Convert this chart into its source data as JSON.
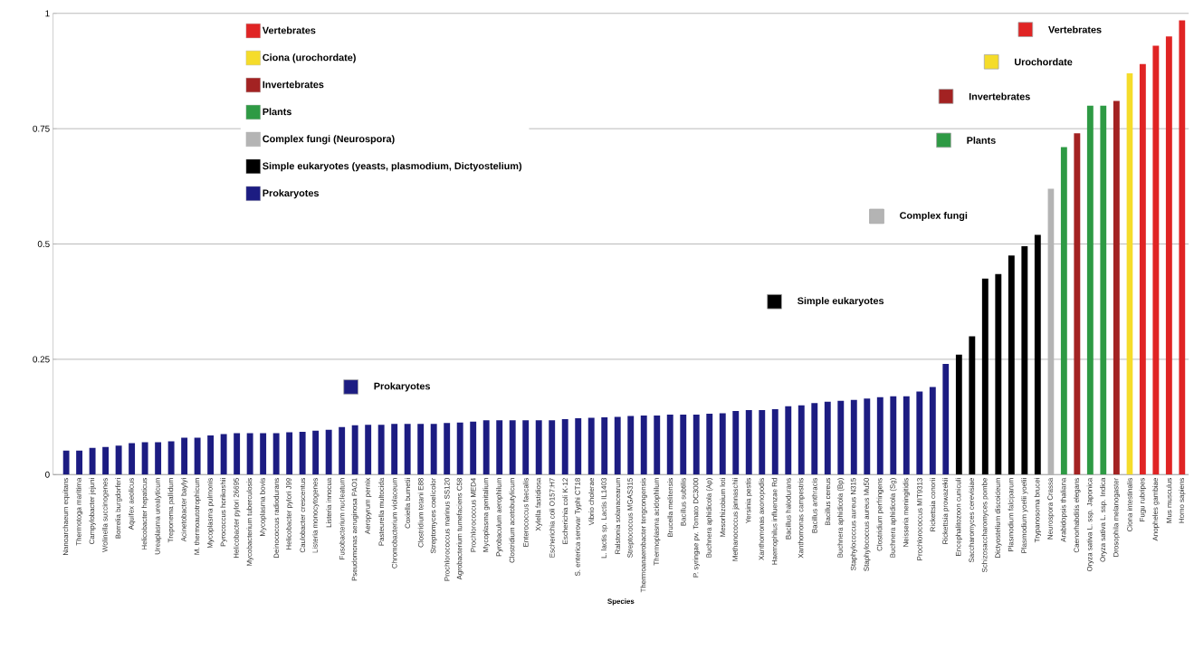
{
  "chart_data": {
    "type": "bar",
    "xlabel": "Species",
    "categories": [
      "Nanoarchaeum equitans",
      "Thermotoga maritima",
      "Campylobacter jejuni",
      "Wolinella succinogenes",
      "Borrelia burgdorferi",
      "Aquifex aeolicus",
      "Helicobacter hepaticus",
      "Ureaplasma urealyticum",
      "Treponema pallidum",
      "Acinetobacter baylyi",
      "M. thermoautotrophicum",
      "Mycoplasma pulmonis",
      "Pyrococcus horikoshii",
      "Helicobacter pylori 26695",
      "Mycobacterium tuberculosis",
      "Mycoplasma bovis",
      "Deinococcus radiodurans",
      "Helicobacter pylori J99",
      "Caulobacter crescentus",
      "Listeria monocytogenes",
      "Listeria innocua",
      "Fusobacterium nucleatum",
      "Pseudomonas aeruginosa PAO1",
      "Aeropyrum pernix",
      "Pasteurella multocida",
      "Chromobacterium violaceum",
      "Coxiella burnetii",
      "Clostridium tetani E88",
      "Streptomyces coelicolor",
      "Prochlorococcus marinus SS120",
      "Agrobacterium tumefaciens C58",
      "Prochlorococcus MED4",
      "Mycoplasma genitalium",
      "Pyrobaculum aerophilum",
      "Clostridium acetobutylicum",
      "Enterococcus faecalis",
      "Xylella fastidiosa",
      "Escherichia coli O157:H7",
      "Escherichia coli K-12",
      "S. enterica serovar Typhi CT18",
      "Vibrio cholerae",
      "L. lactis sp. Lactis IL1403",
      "Ralstonia solanacearum",
      "Streptococcus MGAS315",
      "Thermoanaerobacter tengcongensis",
      "Thermoplasma acidophilum",
      "Brucella melitensis",
      "Bacillus subtilis",
      "P. syringae pv. Tomato DC3000",
      "Buchnera aphidicola (Ap)",
      "Mesorhizobium loti",
      "Methanococcus jannaschii",
      "Yersinia pestis",
      "Xanthomonas axonopodis",
      "Haemophilus influenzae Rd",
      "Bacillus halodurans",
      "Xanthomonas campestris",
      "Bacillus anthracis",
      "Bacillus cereus",
      "Buchnera aphidicola (Bp)",
      "Staphylococcus aureus N315",
      "Staphylococcus aureus Mu50",
      "Clostridium perfringens",
      "Buchnera aphidicola (Sg)",
      "Neisseria meningitidis",
      "Prochlorococcus MIT9313",
      "Rickettsia conorii",
      "Rickettsia prowazekii",
      "Encephalitozoon cuniculi",
      "Saccharomyces cerevisiae",
      "Schizosaccharomyces pombe",
      "Dictyostelium discoideum",
      "Plasmodium falciparum",
      "Plasmodium yoelii yoelii",
      "Trypanosoma brucei",
      "Neurospora Crassa",
      "Arabidopsis thaliana",
      "Caenorhabditis elegans",
      "Oryza sativa L. ssp. Japonica",
      "Oryza sativa L. ssp. Indica",
      "Drosophila melanogaster",
      "Ciona intestinalis",
      "Fugu rubripes",
      "Anopheles gambiae",
      "Mus musculus",
      "Homo sapiens"
    ],
    "series": [
      {
        "name": "Vertebrates",
        "color": "#e02424",
        "values": [
          null,
          null,
          null,
          null,
          null,
          null,
          null,
          null,
          null,
          null,
          null,
          null,
          null,
          null,
          null,
          null,
          null,
          null,
          null,
          null,
          null,
          null,
          null,
          null,
          null,
          null,
          null,
          null,
          null,
          null,
          null,
          null,
          null,
          null,
          null,
          null,
          null,
          null,
          null,
          null,
          null,
          null,
          null,
          null,
          null,
          null,
          null,
          null,
          null,
          null,
          null,
          null,
          null,
          null,
          null,
          null,
          null,
          null,
          null,
          null,
          null,
          null,
          null,
          null,
          null,
          null,
          null,
          null,
          null,
          null,
          null,
          null,
          null,
          null,
          null,
          null,
          null,
          null,
          null,
          null,
          null,
          null,
          0.89,
          0.93,
          0.95,
          0.985
        ]
      },
      {
        "name": "Ciona (urochordate)",
        "color": "#f5dc2a",
        "values": [
          null,
          null,
          null,
          null,
          null,
          null,
          null,
          null,
          null,
          null,
          null,
          null,
          null,
          null,
          null,
          null,
          null,
          null,
          null,
          null,
          null,
          null,
          null,
          null,
          null,
          null,
          null,
          null,
          null,
          null,
          null,
          null,
          null,
          null,
          null,
          null,
          null,
          null,
          null,
          null,
          null,
          null,
          null,
          null,
          null,
          null,
          null,
          null,
          null,
          null,
          null,
          null,
          null,
          null,
          null,
          null,
          null,
          null,
          null,
          null,
          null,
          null,
          null,
          null,
          null,
          null,
          null,
          null,
          null,
          null,
          null,
          null,
          null,
          null,
          null,
          null,
          null,
          null,
          null,
          null,
          null,
          0.87,
          null,
          null,
          null,
          null
        ]
      },
      {
        "name": "Invertebrates",
        "color": "#a32222",
        "values": [
          null,
          null,
          null,
          null,
          null,
          null,
          null,
          null,
          null,
          null,
          null,
          null,
          null,
          null,
          null,
          null,
          null,
          null,
          null,
          null,
          null,
          null,
          null,
          null,
          null,
          null,
          null,
          null,
          null,
          null,
          null,
          null,
          null,
          null,
          null,
          null,
          null,
          null,
          null,
          null,
          null,
          null,
          null,
          null,
          null,
          null,
          null,
          null,
          null,
          null,
          null,
          null,
          null,
          null,
          null,
          null,
          null,
          null,
          null,
          null,
          null,
          null,
          null,
          null,
          null,
          null,
          null,
          null,
          null,
          null,
          null,
          null,
          null,
          null,
          null,
          null,
          null,
          0.74,
          null,
          null,
          0.81,
          null,
          null,
          null,
          null,
          null
        ]
      },
      {
        "name": "Plants",
        "color": "#2e9a44",
        "values": [
          null,
          null,
          null,
          null,
          null,
          null,
          null,
          null,
          null,
          null,
          null,
          null,
          null,
          null,
          null,
          null,
          null,
          null,
          null,
          null,
          null,
          null,
          null,
          null,
          null,
          null,
          null,
          null,
          null,
          null,
          null,
          null,
          null,
          null,
          null,
          null,
          null,
          null,
          null,
          null,
          null,
          null,
          null,
          null,
          null,
          null,
          null,
          null,
          null,
          null,
          null,
          null,
          null,
          null,
          null,
          null,
          null,
          null,
          null,
          null,
          null,
          null,
          null,
          null,
          null,
          null,
          null,
          null,
          null,
          null,
          null,
          null,
          null,
          null,
          null,
          null,
          0.71,
          null,
          0.8,
          0.8,
          null,
          null,
          null,
          null,
          null,
          null
        ]
      },
      {
        "name": "Complex fungi (Neurospora)",
        "color": "#b4b4b4",
        "values": [
          null,
          null,
          null,
          null,
          null,
          null,
          null,
          null,
          null,
          null,
          null,
          null,
          null,
          null,
          null,
          null,
          null,
          null,
          null,
          null,
          null,
          null,
          null,
          null,
          null,
          null,
          null,
          null,
          null,
          null,
          null,
          null,
          null,
          null,
          null,
          null,
          null,
          null,
          null,
          null,
          null,
          null,
          null,
          null,
          null,
          null,
          null,
          null,
          null,
          null,
          null,
          null,
          null,
          null,
          null,
          null,
          null,
          null,
          null,
          null,
          null,
          null,
          null,
          null,
          null,
          null,
          null,
          null,
          null,
          null,
          null,
          null,
          null,
          null,
          null,
          0.62,
          null,
          null,
          null,
          null,
          null,
          null,
          null,
          null,
          null,
          null
        ]
      },
      {
        "name": "Simple eukaryotes (yeasts, plasmodium, Dictyostelium)",
        "color": "#000000",
        "values": [
          null,
          null,
          null,
          null,
          null,
          null,
          null,
          null,
          null,
          null,
          null,
          null,
          null,
          null,
          null,
          null,
          null,
          null,
          null,
          null,
          null,
          null,
          null,
          null,
          null,
          null,
          null,
          null,
          null,
          null,
          null,
          null,
          null,
          null,
          null,
          null,
          null,
          null,
          null,
          null,
          null,
          null,
          null,
          null,
          null,
          null,
          null,
          null,
          null,
          null,
          null,
          null,
          null,
          null,
          null,
          null,
          null,
          null,
          null,
          null,
          null,
          null,
          null,
          null,
          null,
          null,
          null,
          null,
          0.26,
          0.3,
          0.425,
          0.435,
          0.475,
          0.495,
          0.52,
          null,
          null,
          null,
          null,
          null,
          null,
          null,
          null,
          null,
          null,
          null
        ]
      },
      {
        "name": "Prokaryotes",
        "color": "#1c1c82",
        "values": [
          0.052,
          0.052,
          0.058,
          0.06,
          0.063,
          0.068,
          0.07,
          0.07,
          0.072,
          0.08,
          0.08,
          0.085,
          0.088,
          0.09,
          0.09,
          0.09,
          0.09,
          0.092,
          0.093,
          0.095,
          0.097,
          0.103,
          0.107,
          0.108,
          0.108,
          0.11,
          0.11,
          0.11,
          0.11,
          0.112,
          0.113,
          0.115,
          0.118,
          0.118,
          0.118,
          0.118,
          0.118,
          0.118,
          0.12,
          0.122,
          0.123,
          0.124,
          0.125,
          0.127,
          0.128,
          0.128,
          0.13,
          0.13,
          0.13,
          0.132,
          0.133,
          0.138,
          0.14,
          0.14,
          0.142,
          0.148,
          0.15,
          0.155,
          0.158,
          0.16,
          0.162,
          0.165,
          0.168,
          0.17,
          0.17,
          0.18,
          0.19,
          0.24,
          null,
          null,
          null,
          null,
          null,
          null,
          null,
          null,
          null,
          null,
          null,
          null,
          null,
          null,
          null,
          null,
          null,
          null
        ]
      }
    ],
    "annotations": [
      "Vertebrates",
      "Urochordate",
      "Invertebrates",
      "Plants",
      "Complex fungi",
      "Simple eukaryotes",
      "Prokaryotes"
    ],
    "ylim": [
      0,
      1
    ],
    "yticks": [
      0,
      0.25,
      0.5,
      0.75,
      1
    ],
    "grid": "y",
    "legend": "top left"
  }
}
